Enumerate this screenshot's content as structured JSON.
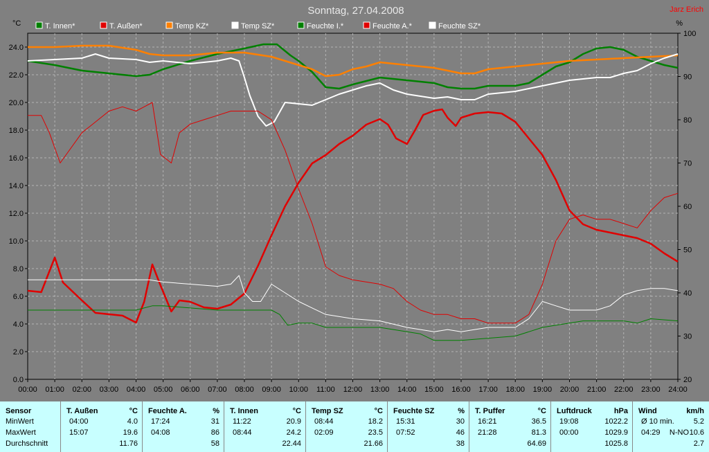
{
  "title": "Sonntag, 27.04.2008",
  "author": "Jarz Erich",
  "chart_data": {
    "type": "line",
    "left_axis": {
      "unit": "°C",
      "min": 0,
      "max": 25,
      "ticks": [
        "0.0",
        "2.0",
        "4.0",
        "6.0",
        "8.0",
        "10.0",
        "12.0",
        "14.0",
        "16.0",
        "18.0",
        "20.0",
        "22.0",
        "24.0"
      ]
    },
    "right_axis": {
      "unit": "%",
      "min": 20,
      "max": 100,
      "ticks": [
        "20",
        "30",
        "40",
        "50",
        "60",
        "70",
        "80",
        "90",
        "100"
      ]
    },
    "x_ticks": [
      "00:00",
      "01:00",
      "02:00",
      "03:00",
      "04:00",
      "05:00",
      "06:00",
      "07:00",
      "08:00",
      "09:00",
      "10:00",
      "11:00",
      "12:00",
      "13:00",
      "14:00",
      "15:00",
      "16:00",
      "17:00",
      "18:00",
      "19:00",
      "20:00",
      "21:00",
      "22:00",
      "23:00",
      "24:00"
    ],
    "grid": true,
    "legend_position": "top",
    "series": [
      {
        "name": "T. Innen*",
        "axis": "left",
        "color": "#008000",
        "width": 2.5,
        "x": [
          0,
          1,
          2,
          3,
          4,
          4.5,
          5,
          6,
          7,
          8,
          8.7,
          9.2,
          9.7,
          10,
          10.5,
          11,
          11.5,
          12,
          13,
          14,
          15,
          15.5,
          16,
          16.5,
          17,
          17.5,
          18,
          18.5,
          19,
          19.5,
          20,
          20.5,
          21,
          21.5,
          22,
          22.5,
          23,
          23.5,
          24
        ],
        "y": [
          23.0,
          22.7,
          22.3,
          22.1,
          21.9,
          22.0,
          22.4,
          23.0,
          23.5,
          23.9,
          24.2,
          24.2,
          23.4,
          23.0,
          22.2,
          21.1,
          21.0,
          21.3,
          21.8,
          21.6,
          21.4,
          21.1,
          21.0,
          21.0,
          21.2,
          21.2,
          21.2,
          21.4,
          22.0,
          22.6,
          22.9,
          23.5,
          23.9,
          24.0,
          23.8,
          23.3,
          23.0,
          22.7,
          22.5
        ]
      },
      {
        "name": "T. Außen*",
        "axis": "left",
        "color": "#e00000",
        "width": 2.5,
        "x": [
          0,
          0.5,
          1,
          1.3,
          2,
          2.5,
          3,
          3.5,
          4,
          4.3,
          4.6,
          4.9,
          5.3,
          5.6,
          6,
          6.5,
          7,
          7.5,
          8,
          8.5,
          9,
          9.5,
          10,
          10.5,
          11,
          11.5,
          12,
          12.5,
          13,
          13.3,
          13.6,
          14,
          14.3,
          14.6,
          15,
          15.3,
          15.5,
          15.8,
          16,
          16.5,
          17,
          17.5,
          18,
          18.5,
          19,
          19.5,
          20,
          20.5,
          21,
          21.5,
          22,
          22.5,
          23,
          23.5,
          24
        ],
        "y": [
          6.4,
          6.3,
          8.8,
          7.0,
          5.7,
          4.8,
          4.7,
          4.6,
          4.1,
          5.6,
          8.3,
          6.8,
          4.9,
          5.7,
          5.6,
          5.2,
          5.1,
          5.4,
          6.2,
          8.2,
          10.4,
          12.5,
          14.2,
          15.6,
          16.2,
          17.0,
          17.6,
          18.4,
          18.8,
          18.4,
          17.4,
          17.0,
          18.0,
          19.1,
          19.4,
          19.5,
          18.9,
          18.3,
          18.9,
          19.2,
          19.3,
          19.2,
          18.6,
          17.4,
          16.2,
          14.4,
          12.2,
          11.2,
          10.8,
          10.6,
          10.4,
          10.2,
          9.8,
          9.1,
          8.5
        ]
      },
      {
        "name": "Temp KZ*",
        "axis": "left",
        "color": "#ff8000",
        "width": 2.5,
        "x": [
          0,
          1,
          2,
          3,
          4,
          4.5,
          5,
          6,
          7,
          8,
          9,
          9.5,
          10,
          10.5,
          11,
          11.5,
          12,
          12.5,
          13,
          14,
          15,
          15.5,
          16,
          16.5,
          17,
          18,
          19,
          20,
          21,
          22,
          23,
          24
        ],
        "y": [
          24.0,
          24.0,
          24.1,
          24.1,
          23.8,
          23.5,
          23.4,
          23.4,
          23.6,
          23.6,
          23.3,
          23.0,
          22.7,
          22.4,
          21.9,
          22.0,
          22.4,
          22.6,
          22.9,
          22.7,
          22.5,
          22.3,
          22.1,
          22.1,
          22.4,
          22.6,
          22.8,
          23.0,
          23.1,
          23.2,
          23.3,
          23.4
        ]
      },
      {
        "name": "Temp SZ*",
        "axis": "left",
        "color": "#ffffff",
        "width": 2,
        "x": [
          0,
          1,
          2,
          2.5,
          3,
          4,
          4.5,
          5,
          6,
          7,
          7.5,
          7.8,
          8,
          8.2,
          8.5,
          8.8,
          9.1,
          9.5,
          10,
          10.5,
          11,
          11.5,
          12,
          12.5,
          13,
          13.5,
          14,
          15,
          15.5,
          16,
          16.5,
          17,
          18,
          18.5,
          19,
          20,
          21,
          21.5,
          22,
          22.5,
          23,
          23.5,
          24
        ],
        "y": [
          23.0,
          23.1,
          23.2,
          23.5,
          23.2,
          23.1,
          22.9,
          23.0,
          22.8,
          23.0,
          23.2,
          23.0,
          21.8,
          20.5,
          19.0,
          18.3,
          18.6,
          20.0,
          19.9,
          19.8,
          20.2,
          20.6,
          20.9,
          21.2,
          21.4,
          20.9,
          20.6,
          20.3,
          20.4,
          20.2,
          20.2,
          20.6,
          20.8,
          21.0,
          21.2,
          21.6,
          21.8,
          21.8,
          22.1,
          22.3,
          22.8,
          23.2,
          23.5
        ]
      },
      {
        "name": "Feuchte I.*",
        "axis": "right",
        "color": "#008000",
        "width": 1,
        "x": [
          0,
          1,
          2,
          3,
          4,
          4.3,
          4.6,
          5,
          6,
          7,
          8,
          9,
          9.3,
          9.6,
          10,
          10.5,
          11,
          12,
          13,
          14,
          14.5,
          15,
          16,
          17,
          18,
          18.5,
          19,
          20,
          20.5,
          21,
          22,
          22.5,
          23,
          24
        ],
        "y": [
          36,
          36,
          36,
          36,
          36,
          36.5,
          37,
          37,
          36.5,
          36,
          36,
          36,
          35,
          32.5,
          33,
          33,
          32,
          32,
          32,
          31,
          30.5,
          29,
          29,
          29.5,
          30,
          31,
          32,
          33,
          33.5,
          33.5,
          33.5,
          33,
          34,
          33.5
        ]
      },
      {
        "name": "Feuchte A.*",
        "axis": "right",
        "color": "#e00000",
        "width": 1,
        "x": [
          0,
          0.5,
          0.8,
          1.2,
          2,
          3,
          3.5,
          4,
          4.3,
          4.6,
          4.9,
          5.3,
          5.6,
          6,
          6.5,
          7,
          7.5,
          8,
          8.5,
          9,
          9.5,
          10,
          10.5,
          11,
          11.5,
          12,
          13,
          13.5,
          14,
          14.5,
          15,
          15.5,
          16,
          16.5,
          17,
          17.5,
          18,
          18.5,
          19,
          19.5,
          20,
          20.5,
          21,
          21.5,
          22,
          22.5,
          23,
          23.5,
          24
        ],
        "y": [
          81,
          81,
          77,
          70,
          77,
          82,
          83,
          82,
          83,
          84,
          72,
          70,
          77,
          79,
          80,
          81,
          82,
          82,
          82,
          80,
          73,
          64,
          56,
          46,
          44,
          43,
          42,
          41,
          38,
          36,
          35,
          35,
          34,
          34,
          33,
          33,
          33,
          35,
          42,
          52,
          57,
          58,
          57,
          57,
          56,
          55,
          59,
          62,
          63
        ]
      },
      {
        "name": "Feuchte SZ*",
        "axis": "right",
        "color": "#ffffff",
        "width": 1,
        "x": [
          0,
          1,
          2,
          3,
          4,
          4.5,
          5,
          6,
          7,
          7.5,
          7.8,
          8,
          8.3,
          8.6,
          9,
          9.5,
          10,
          10.5,
          11,
          12,
          13,
          14,
          15,
          15.5,
          16,
          17,
          18,
          18.5,
          19,
          19.5,
          20,
          20.5,
          21,
          21.5,
          22,
          22.5,
          23,
          23.5,
          24
        ],
        "y": [
          43,
          43,
          43,
          43,
          43,
          43,
          42.5,
          42,
          41.5,
          42,
          44,
          40,
          38,
          38,
          42,
          40,
          38,
          36.5,
          35,
          34,
          33.5,
          32,
          31,
          31.5,
          31,
          32,
          32,
          34,
          38,
          37,
          36,
          36,
          36,
          37,
          39.5,
          40.5,
          41,
          41,
          40.5
        ]
      }
    ]
  },
  "stats": {
    "columns": [
      {
        "header": "Sensor",
        "unit": "",
        "rows": [
          {
            "label": "MinWert",
            "mid": "",
            "val": ""
          },
          {
            "label": "MaxWert",
            "mid": "",
            "val": ""
          },
          {
            "label": "Durchschnitt",
            "mid": "",
            "val": ""
          }
        ]
      },
      {
        "header": "T. Außen",
        "unit": "°C",
        "rows": [
          {
            "label": "04:00",
            "mid": "",
            "val": "4.0"
          },
          {
            "label": "15:07",
            "mid": "",
            "val": "19.6"
          },
          {
            "label": "",
            "mid": "",
            "val": "11.76"
          }
        ]
      },
      {
        "header": "Feuchte A.",
        "unit": "%",
        "rows": [
          {
            "label": "17:24",
            "mid": "",
            "val": "31"
          },
          {
            "label": "04:08",
            "mid": "",
            "val": "86"
          },
          {
            "label": "",
            "mid": "",
            "val": "58"
          }
        ]
      },
      {
        "header": "T. Innen",
        "unit": "°C",
        "rows": [
          {
            "label": "11:22",
            "mid": "",
            "val": "20.9"
          },
          {
            "label": "08:44",
            "mid": "",
            "val": "24.2"
          },
          {
            "label": "",
            "mid": "",
            "val": "22.44"
          }
        ]
      },
      {
        "header": "Temp SZ",
        "unit": "°C",
        "rows": [
          {
            "label": "08:44",
            "mid": "",
            "val": "18.2"
          },
          {
            "label": "02:09",
            "mid": "",
            "val": "23.5"
          },
          {
            "label": "",
            "mid": "",
            "val": "21.66"
          }
        ]
      },
      {
        "header": "Feuchte SZ",
        "unit": "%",
        "rows": [
          {
            "label": "15:31",
            "mid": "",
            "val": "30"
          },
          {
            "label": "07:52",
            "mid": "",
            "val": "46"
          },
          {
            "label": "",
            "mid": "",
            "val": "38"
          }
        ]
      },
      {
        "header": "T. Puffer",
        "unit": "°C",
        "rows": [
          {
            "label": "16:21",
            "mid": "",
            "val": "36.5"
          },
          {
            "label": "21:28",
            "mid": "",
            "val": "81.3"
          },
          {
            "label": "",
            "mid": "",
            "val": "64.69"
          }
        ]
      },
      {
        "header": "Luftdruck",
        "unit": "hPa",
        "rows": [
          {
            "label": "19:08",
            "mid": "",
            "val": "1022.2"
          },
          {
            "label": "00:00",
            "mid": "",
            "val": "1029.9"
          },
          {
            "label": "",
            "mid": "",
            "val": "1025.8"
          }
        ]
      },
      {
        "header": "Wind",
        "unit": "km/h",
        "rows": [
          {
            "label": "Ø 10 min.",
            "mid": "",
            "val": "5.2"
          },
          {
            "label": "04:29",
            "mid": "N-NO",
            "val": "10.6"
          },
          {
            "label": "",
            "mid": "",
            "val": "2.7"
          }
        ]
      }
    ]
  }
}
